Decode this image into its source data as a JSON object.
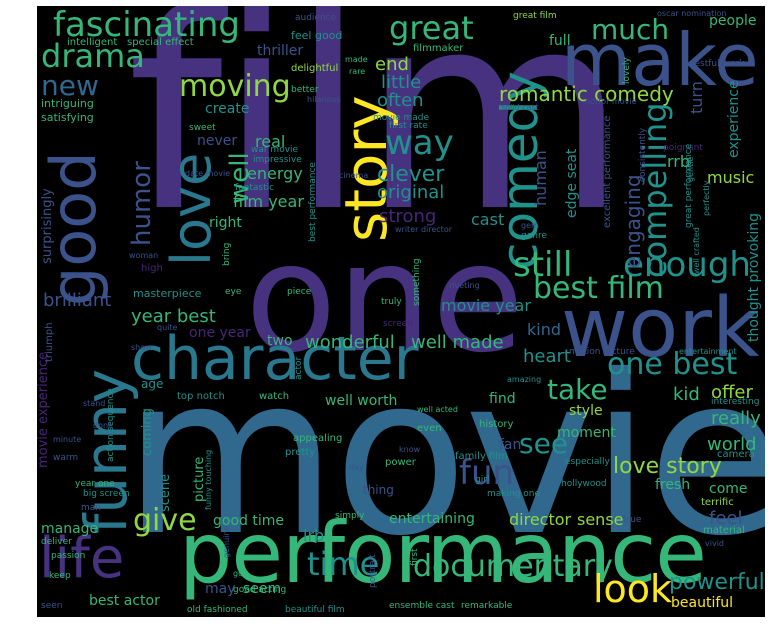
{
  "canvas": {
    "background": "#000000"
  },
  "palette": {
    "purple": "#46327e",
    "violet": "#482677",
    "indigo": "#3b528b",
    "blue": "#31688e",
    "teal": "#21918c",
    "green": "#35b779",
    "lime": "#90d743",
    "yellow": "#fde725"
  },
  "words": [
    {
      "text": "film",
      "color": "#46327e"
    },
    {
      "text": "movie",
      "color": "#31688e"
    },
    {
      "text": "one",
      "color": "#46327e"
    },
    {
      "text": "performance",
      "color": "#35b779"
    },
    {
      "text": "character",
      "color": "#2a788e"
    },
    {
      "text": "work",
      "color": "#3b528b"
    },
    {
      "text": "make",
      "color": "#3b528b"
    },
    {
      "text": "story",
      "color": "#fde725"
    },
    {
      "text": "good",
      "color": "#3b528b"
    },
    {
      "text": "comedy",
      "color": "#21918c"
    },
    {
      "text": "funny",
      "color": "#2a788e"
    },
    {
      "text": "love",
      "color": "#2a788e"
    },
    {
      "text": "life",
      "color": "#46327e"
    },
    {
      "text": "fascinating",
      "color": "#35b779"
    },
    {
      "text": "drama",
      "color": "#35b779"
    },
    {
      "text": "great",
      "color": "#35b779"
    },
    {
      "text": "new",
      "color": "#31688e"
    },
    {
      "text": "moving",
      "color": "#90d743"
    },
    {
      "text": "way",
      "color": "#21918c"
    },
    {
      "text": "still",
      "color": "#35b779"
    },
    {
      "text": "enough",
      "color": "#21918c"
    },
    {
      "text": "best film",
      "color": "#35b779"
    },
    {
      "text": "compelling",
      "color": "#21918c"
    },
    {
      "text": "fun",
      "color": "#3b528b"
    },
    {
      "text": "documentary",
      "color": "#35b779"
    },
    {
      "text": "look",
      "color": "#fde725"
    },
    {
      "text": "time",
      "color": "#21918c"
    },
    {
      "text": "give",
      "color": "#90d743"
    },
    {
      "text": "one best",
      "color": "#21918c"
    },
    {
      "text": "see",
      "color": "#21918c"
    },
    {
      "text": "take",
      "color": "#35b779"
    },
    {
      "text": "much",
      "color": "#35b779"
    },
    {
      "text": "romantic comedy",
      "color": "#90d743"
    },
    {
      "text": "humor",
      "color": "#3b528b"
    },
    {
      "text": "well",
      "color": "#35b779"
    },
    {
      "text": "clever",
      "color": "#21918c"
    },
    {
      "text": "engaging",
      "color": "#3b528b"
    },
    {
      "text": "powerful",
      "color": "#21918c"
    },
    {
      "text": "love story",
      "color": "#90d743"
    },
    {
      "text": "brilliant",
      "color": "#3b528b"
    },
    {
      "text": "year best",
      "color": "#35b779"
    },
    {
      "text": "wonderful",
      "color": "#35b779"
    },
    {
      "text": "well made",
      "color": "#35b779"
    },
    {
      "text": "heart",
      "color": "#21918c"
    },
    {
      "text": "kid",
      "color": "#35b779"
    },
    {
      "text": "offer",
      "color": "#90d743"
    },
    {
      "text": "really",
      "color": "#35b779"
    },
    {
      "text": "world",
      "color": "#35b779"
    },
    {
      "text": "movie year",
      "color": "#21918c"
    },
    {
      "text": "kind",
      "color": "#31688e"
    },
    {
      "text": "little",
      "color": "#21918c"
    },
    {
      "text": "often",
      "color": "#21918c"
    },
    {
      "text": "end",
      "color": "#90d743"
    },
    {
      "text": "original",
      "color": "#21918c"
    },
    {
      "text": "human",
      "color": "#3b528b"
    },
    {
      "text": "music",
      "color": "#90d743"
    },
    {
      "text": "real",
      "color": "#35b779"
    },
    {
      "text": "energy",
      "color": "#35b779"
    },
    {
      "text": "create",
      "color": "#21918c"
    },
    {
      "text": "never",
      "color": "#3b528b"
    },
    {
      "text": "film year",
      "color": "#35b779"
    },
    {
      "text": "right",
      "color": "#35b779"
    },
    {
      "text": "strong",
      "color": "#482677"
    },
    {
      "text": "cast",
      "color": "#21918c"
    },
    {
      "text": "rrb",
      "color": "#35b779"
    },
    {
      "text": "lrb",
      "color": "#21918c"
    },
    {
      "text": "edge seat",
      "color": "#21918c"
    },
    {
      "text": "experience",
      "color": "#21918c"
    },
    {
      "text": "turn",
      "color": "#3b528b"
    },
    {
      "text": "full",
      "color": "#35b779"
    },
    {
      "text": "people",
      "color": "#35b779"
    },
    {
      "text": "thriller",
      "color": "#3b528b"
    },
    {
      "text": "intriguing",
      "color": "#35b779"
    },
    {
      "text": "satisfying",
      "color": "#35b779"
    },
    {
      "text": "pleasure",
      "color": "#35b779"
    },
    {
      "text": "sweet",
      "color": "#35b779"
    },
    {
      "text": "well worth",
      "color": "#35b779"
    },
    {
      "text": "style",
      "color": "#90d743"
    },
    {
      "text": "moment",
      "color": "#35b779"
    },
    {
      "text": "fan",
      "color": "#3b528b"
    },
    {
      "text": "fresh",
      "color": "#35b779"
    },
    {
      "text": "come",
      "color": "#35b779"
    },
    {
      "text": "feel",
      "color": "#3b528b"
    },
    {
      "text": "best actor",
      "color": "#35b779"
    },
    {
      "text": "may",
      "color": "#3b528b"
    },
    {
      "text": "seem",
      "color": "#35b779"
    },
    {
      "text": "beautiful",
      "color": "#fde725"
    },
    {
      "text": "good time",
      "color": "#35b779"
    },
    {
      "text": "entertaining",
      "color": "#35b779"
    },
    {
      "text": "director",
      "color": "#90d743"
    },
    {
      "text": "sense",
      "color": "#90d743"
    },
    {
      "text": "manage",
      "color": "#35b779"
    },
    {
      "text": "scene",
      "color": "#21918c"
    },
    {
      "text": "picture",
      "color": "#35b779"
    },
    {
      "text": "age",
      "color": "#21918c"
    },
    {
      "text": "coming",
      "color": "#21918c"
    },
    {
      "text": "one year",
      "color": "#482677"
    },
    {
      "text": "two",
      "color": "#35b779"
    },
    {
      "text": "find",
      "color": "#35b779"
    },
    {
      "text": "triumph",
      "color": "#3b528b"
    },
    {
      "text": "surprisingly",
      "color": "#3b528b"
    },
    {
      "text": "movie experience",
      "color": "#482677"
    },
    {
      "text": "thought provoking",
      "color": "#21918c"
    },
    {
      "text": "audience",
      "color": "#3b528b"
    },
    {
      "text": "intelligent",
      "color": "#35b779"
    },
    {
      "text": "special effect",
      "color": "#35b779"
    },
    {
      "text": "feel good",
      "color": "#21918c"
    },
    {
      "text": "filmmaker",
      "color": "#35b779"
    },
    {
      "text": "delightful",
      "color": "#90d743"
    },
    {
      "text": "great film",
      "color": "#90d743"
    },
    {
      "text": "oscar nomination",
      "color": "#3b528b"
    },
    {
      "text": "restful work",
      "color": "#3b528b"
    },
    {
      "text": "solid cast",
      "color": "#3b528b"
    },
    {
      "text": "horror movie",
      "color": "#3b528b"
    },
    {
      "text": "excellent performance",
      "color": "#3b528b"
    },
    {
      "text": "consistently",
      "color": "#3b528b"
    },
    {
      "text": "poignant",
      "color": "#482677"
    },
    {
      "text": "best performance",
      "color": "#21918c"
    },
    {
      "text": "writer director",
      "color": "#3b528b"
    },
    {
      "text": "hilarious",
      "color": "#3b528b"
    },
    {
      "text": "better",
      "color": "#35b779"
    },
    {
      "text": "made",
      "color": "#35b779"
    },
    {
      "text": "movie made",
      "color": "#21918c"
    },
    {
      "text": "first rate",
      "color": "#21918c"
    },
    {
      "text": "impressive",
      "color": "#21918c"
    },
    {
      "text": "war movie",
      "color": "#21918c"
    },
    {
      "text": "fantastic",
      "color": "#21918c"
    },
    {
      "text": "masterpiece",
      "color": "#21918c"
    },
    {
      "text": "high",
      "color": "#482677"
    },
    {
      "text": "woman",
      "color": "#3b528b"
    },
    {
      "text": "genre",
      "color": "#21918c"
    },
    {
      "text": "truly",
      "color": "#35b779"
    },
    {
      "text": "piece",
      "color": "#35b779"
    },
    {
      "text": "eye",
      "color": "#35b779"
    },
    {
      "text": "riveting",
      "color": "#3b528b"
    },
    {
      "text": "screen",
      "color": "#482677"
    },
    {
      "text": "entertainment",
      "color": "#21918c"
    },
    {
      "text": "motion picture",
      "color": "#3b528b"
    },
    {
      "text": "amazing",
      "color": "#21918c"
    },
    {
      "text": "top notch",
      "color": "#21918c"
    },
    {
      "text": "watch",
      "color": "#35b779"
    },
    {
      "text": "actor",
      "color": "#21918c"
    },
    {
      "text": "history",
      "color": "#35b779"
    },
    {
      "text": "even",
      "color": "#35b779"
    },
    {
      "text": "appealing",
      "color": "#35b779"
    },
    {
      "text": "pretty",
      "color": "#21918c"
    },
    {
      "text": "family film",
      "color": "#21918c"
    },
    {
      "text": "especially",
      "color": "#21918c"
    },
    {
      "text": "hollywood",
      "color": "#21918c"
    },
    {
      "text": "thing",
      "color": "#3b528b"
    },
    {
      "text": "power",
      "color": "#35b779"
    },
    {
      "text": "girl",
      "color": "#21918c"
    },
    {
      "text": "making one",
      "color": "#21918c"
    },
    {
      "text": "terrific",
      "color": "#90d743"
    },
    {
      "text": "true",
      "color": "#3b528b"
    },
    {
      "text": "action sequence",
      "color": "#21918c"
    },
    {
      "text": "warm",
      "color": "#3b528b"
    },
    {
      "text": "year one",
      "color": "#35b779"
    },
    {
      "text": "big screen",
      "color": "#21918c"
    },
    {
      "text": "man",
      "color": "#3b528b"
    },
    {
      "text": "funny touching",
      "color": "#21918c"
    },
    {
      "text": "simply",
      "color": "#35b779"
    },
    {
      "text": "ensemble cast",
      "color": "#35b779"
    },
    {
      "text": "remarkable",
      "color": "#35b779"
    },
    {
      "text": "old fashioned",
      "color": "#35b779"
    },
    {
      "text": "beautiful film",
      "color": "#21918c"
    },
    {
      "text": "keep",
      "color": "#35b779"
    },
    {
      "text": "deliver",
      "color": "#35b779"
    },
    {
      "text": "passion",
      "color": "#35b779"
    },
    {
      "text": "good acting",
      "color": "#35b779"
    },
    {
      "text": "material",
      "color": "#35b779"
    },
    {
      "text": "camera",
      "color": "#21918c"
    },
    {
      "text": "interesting",
      "color": "#21918c"
    },
    {
      "text": "first",
      "color": "#35b779"
    },
    {
      "text": "portrait",
      "color": "#3b528b"
    },
    {
      "text": "lovely",
      "color": "#35b779"
    },
    {
      "text": "seen",
      "color": "#3b528b"
    },
    {
      "text": "bring",
      "color": "#35b779"
    },
    {
      "text": "something",
      "color": "#35b779"
    },
    {
      "text": "great performance",
      "color": "#21918c"
    },
    {
      "text": "gentle",
      "color": "#21918c"
    },
    {
      "text": "perfectly",
      "color": "#21918c"
    },
    {
      "text": "well crafted",
      "color": "#21918c"
    },
    {
      "text": "minute",
      "color": "#3b528b"
    },
    {
      "text": "date movie",
      "color": "#3b528b"
    },
    {
      "text": "cinema",
      "color": "#3b528b"
    },
    {
      "text": "stand",
      "color": "#3b528b"
    },
    {
      "text": "show",
      "color": "#3b528b"
    },
    {
      "text": "quite",
      "color": "#3b528b"
    },
    {
      "text": "done",
      "color": "#3b528b"
    },
    {
      "text": "gem",
      "color": "#3b528b"
    },
    {
      "text": "day",
      "color": "#3b528b"
    },
    {
      "text": "know",
      "color": "#3b528b"
    },
    {
      "text": "well acted",
      "color": "#35b779"
    },
    {
      "text": "go",
      "color": "#35b779"
    },
    {
      "text": "genuine",
      "color": "#3b528b"
    },
    {
      "text": "rare",
      "color": "#35b779"
    },
    {
      "text": "vivid",
      "color": "#3b528b"
    }
  ]
}
